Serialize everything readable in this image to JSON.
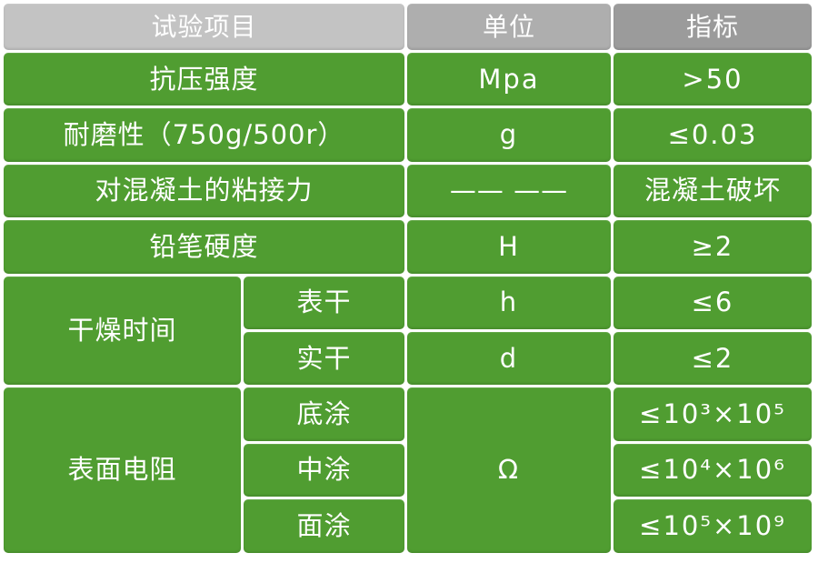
{
  "table": {
    "header": {
      "col_item": "试验项目",
      "col_unit": "单位",
      "col_index": "指标"
    },
    "rows": [
      {
        "item": "抗压强度",
        "unit": "Mpa",
        "value": ">50"
      },
      {
        "item": "耐磨性（750g/500r）",
        "unit": "g",
        "value": "≤0.03"
      },
      {
        "item": "对混凝土的粘接力",
        "unit": "—— ——",
        "value": "混凝土破坏"
      },
      {
        "item": "铅笔硬度",
        "unit": "H",
        "value": "≥2"
      }
    ],
    "drying_time": {
      "label": "干燥时间",
      "sub_rows": [
        {
          "item": "表干",
          "unit": "h",
          "value": "≤6"
        },
        {
          "item": "实干",
          "unit": "d",
          "value": "≤2"
        }
      ]
    },
    "surface_resistance": {
      "label": "表面电阻",
      "unit": "Ω",
      "sub_rows": [
        {
          "item": "底涂",
          "value": "≤10³×10⁵"
        },
        {
          "item": "中涂",
          "value": "≤10⁴×10⁶"
        },
        {
          "item": "面涂",
          "value": "≤10⁵×10⁹"
        }
      ]
    },
    "colors": {
      "cell_green": "#509d31",
      "header_item_gray": "#c3c3c3",
      "header_unit_gray": "#aeaeae",
      "header_index_gray": "#9b9b9b",
      "text": "#ffffff",
      "background": "#ffffff"
    }
  }
}
